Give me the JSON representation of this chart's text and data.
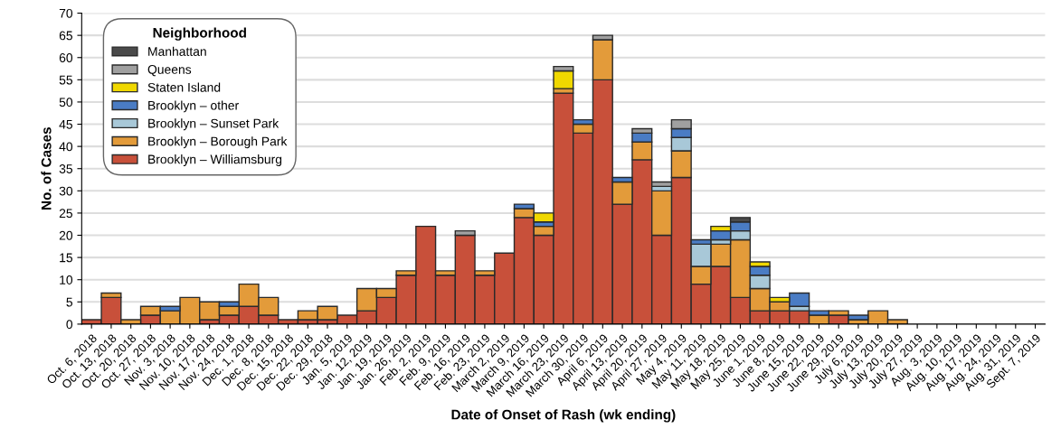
{
  "chart_data": {
    "type": "bar",
    "stacked": true,
    "xlabel": "Date of Onset of Rash (wk ending)",
    "ylabel": "No. of Cases",
    "legend_title": "Neighborhood",
    "legend": "top left",
    "grid": "y",
    "categories": [
      "Oct. 6, 2018",
      "Oct. 13, 2018",
      "Oct. 20, 2018",
      "Oct. 27, 2018",
      "Nov. 3, 2018",
      "Nov. 10, 2018",
      "Nov. 17, 2018",
      "Nov. 24, 2018",
      "Dec. 1, 2018",
      "Dec. 8, 2018",
      "Dec. 15, 2018",
      "Dec. 22, 2018",
      "Dec. 29, 2018",
      "Jan. 5, 2019",
      "Jan. 12, 2019",
      "Jan. 19, 2019",
      "Jan. 26, 2019",
      "Feb. 2, 2019",
      "Feb. 9, 2019",
      "Feb. 16, 2019",
      "Feb. 23, 2019",
      "March 2, 2019",
      "March 9, 2019",
      "March 16, 2019",
      "March 23, 2019",
      "March 30, 2019",
      "April 6, 2019",
      "April 13, 2019",
      "April 20, 2019",
      "April 27, 2019",
      "May 4, 2019",
      "May 11, 2019",
      "May 18, 2019",
      "May 25, 2019",
      "June 1, 2019",
      "June 8, 2019",
      "June 15, 2019",
      "June 22, 2019",
      "June 29, 2019",
      "July 6, 2019",
      "July 13, 2019",
      "July 20, 2019",
      "July 27, 2019",
      "Aug. 3, 2019",
      "Aug. 10, 2019",
      "Aug. 17, 2019",
      "Aug. 24, 2019",
      "Aug. 31, 2019",
      "Sept. 7, 2019"
    ],
    "ylim": [
      0,
      70
    ],
    "yticks": [
      0,
      5,
      10,
      15,
      20,
      25,
      30,
      35,
      40,
      45,
      50,
      55,
      60,
      65,
      70
    ],
    "series": [
      {
        "name": "Brooklyn – Williamsburg",
        "color": "#c8503a",
        "values": [
          1,
          6,
          0,
          2,
          0,
          0,
          1,
          2,
          4,
          2,
          1,
          1,
          1,
          2,
          3,
          6,
          11,
          22,
          11,
          20,
          11,
          16,
          24,
          20,
          52,
          43,
          55,
          27,
          37,
          20,
          33,
          9,
          13,
          6,
          3,
          3,
          3,
          0,
          2,
          0,
          0,
          0,
          0,
          0,
          0,
          0,
          0,
          0,
          0
        ]
      },
      {
        "name": "Brooklyn – Borough Park",
        "color": "#e39b3a",
        "values": [
          0,
          1,
          1,
          2,
          3,
          6,
          4,
          2,
          5,
          4,
          0,
          2,
          3,
          0,
          5,
          2,
          1,
          0,
          1,
          0,
          1,
          0,
          2,
          2,
          1,
          2,
          9,
          5,
          4,
          10,
          6,
          4,
          5,
          13,
          5,
          2,
          0,
          2,
          1,
          1,
          3,
          1,
          0,
          0,
          0,
          0,
          0,
          0,
          0
        ]
      },
      {
        "name": "Brooklyn – Sunset Park",
        "color": "#a8c8d8",
        "values": [
          0,
          0,
          0,
          0,
          0,
          0,
          0,
          0,
          0,
          0,
          0,
          0,
          0,
          0,
          0,
          0,
          0,
          0,
          0,
          0,
          0,
          0,
          0,
          0,
          0,
          0,
          0,
          0,
          0,
          1,
          3,
          5,
          1,
          2,
          3,
          0,
          1,
          0,
          0,
          0,
          0,
          0,
          0,
          0,
          0,
          0,
          0,
          0,
          0
        ]
      },
      {
        "name": "Brooklyn – other",
        "color": "#4a7cc4",
        "values": [
          0,
          0,
          0,
          0,
          1,
          0,
          0,
          1,
          0,
          0,
          0,
          0,
          0,
          0,
          0,
          0,
          0,
          0,
          0,
          0,
          0,
          0,
          1,
          1,
          0,
          1,
          0,
          1,
          2,
          0,
          2,
          1,
          2,
          2,
          2,
          0,
          3,
          1,
          0,
          1,
          0,
          0,
          0,
          0,
          0,
          0,
          0,
          0,
          0
        ]
      },
      {
        "name": "Staten Island",
        "color": "#f0d800",
        "values": [
          0,
          0,
          0,
          0,
          0,
          0,
          0,
          0,
          0,
          0,
          0,
          0,
          0,
          0,
          0,
          0,
          0,
          0,
          0,
          0,
          0,
          0,
          0,
          2,
          4,
          0,
          0,
          0,
          0,
          0,
          0,
          0,
          1,
          0,
          1,
          1,
          0,
          0,
          0,
          0,
          0,
          0,
          0,
          0,
          0,
          0,
          0,
          0,
          0
        ]
      },
      {
        "name": "Queens",
        "color": "#a0a0a0",
        "values": [
          0,
          0,
          0,
          0,
          0,
          0,
          0,
          0,
          0,
          0,
          0,
          0,
          0,
          0,
          0,
          0,
          0,
          0,
          0,
          1,
          0,
          0,
          0,
          0,
          1,
          0,
          1,
          0,
          1,
          1,
          2,
          0,
          0,
          0,
          0,
          0,
          0,
          0,
          0,
          0,
          0,
          0,
          0,
          0,
          0,
          0,
          0,
          0,
          0
        ]
      },
      {
        "name": "Manhattan",
        "color": "#4a4a4a",
        "values": [
          0,
          0,
          0,
          0,
          0,
          0,
          0,
          0,
          0,
          0,
          0,
          0,
          0,
          0,
          0,
          0,
          0,
          0,
          0,
          0,
          0,
          0,
          0,
          0,
          0,
          0,
          0,
          0,
          0,
          0,
          0,
          0,
          0,
          1,
          0,
          0,
          0,
          0,
          0,
          0,
          0,
          0,
          0,
          0,
          0,
          0,
          0,
          0,
          0
        ]
      }
    ]
  }
}
